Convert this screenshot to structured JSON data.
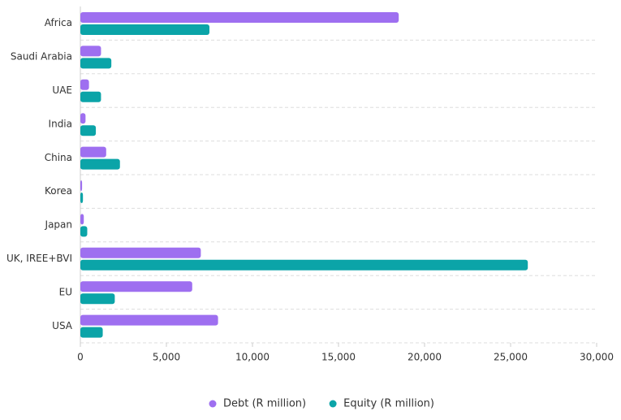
{
  "chart_data": {
    "type": "bar",
    "orientation": "horizontal",
    "categories": [
      "Africa",
      "Saudi Arabia",
      "UAE",
      "India",
      "China",
      "Korea",
      "Japan",
      "UK, IREE+BVI",
      "EU",
      "USA"
    ],
    "series": [
      {
        "name": "Debt (R million)",
        "color": "#9e6ff0",
        "values": [
          18500,
          1200,
          500,
          300,
          1500,
          100,
          200,
          7000,
          6500,
          8000
        ]
      },
      {
        "name": "Equity (R million)",
        "color": "#0ba4a8",
        "values": [
          7500,
          1800,
          1200,
          900,
          2300,
          150,
          400,
          26000,
          2000,
          1300
        ]
      }
    ],
    "xlim": [
      0,
      30000
    ],
    "xticks": [
      0,
      {
        "value": 5000,
        "label": "5,000"
      },
      {
        "value": 10000,
        "label": "10,000"
      },
      {
        "value": 15000,
        "label": "15,000"
      },
      {
        "value": 20000,
        "label": "20,000"
      },
      {
        "value": 25000,
        "label": "25,000"
      },
      {
        "value": 30000,
        "label": "30,000"
      }
    ],
    "legend": "bottom"
  }
}
